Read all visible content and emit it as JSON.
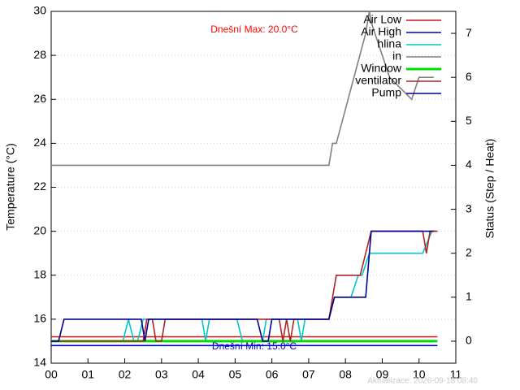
{
  "chart_data": {
    "type": "line",
    "ylabel": "Temperature (°C)",
    "y2label": "Status (Step / Heat)",
    "xlim": [
      0,
      11
    ],
    "xticks": [
      {
        "value": 0,
        "label": "00"
      },
      {
        "value": 1,
        "label": "01"
      },
      {
        "value": 2,
        "label": "02"
      },
      {
        "value": 3,
        "label": "03"
      },
      {
        "value": 4,
        "label": "04"
      },
      {
        "value": 5,
        "label": "05"
      },
      {
        "value": 6,
        "label": "06"
      },
      {
        "value": 7,
        "label": "07"
      },
      {
        "value": 8,
        "label": "08"
      },
      {
        "value": 9,
        "label": "09"
      },
      {
        "value": 10,
        "label": "10"
      },
      {
        "value": 11,
        "label": "11"
      }
    ],
    "ylim": [
      14,
      30
    ],
    "yticks": [
      14,
      16,
      18,
      20,
      22,
      24,
      26,
      28,
      30
    ],
    "y2lim": [
      -0.5,
      7.5
    ],
    "y2ticks": [
      0,
      1,
      2,
      3,
      4,
      5,
      6,
      7
    ],
    "grid": true,
    "legend": "top-right",
    "annotations": [
      {
        "text": "Dnešní Max: 20.0°C",
        "color": "#ff0000"
      },
      {
        "text": "Dnešní Min: 15.0°C",
        "color": "#0000cc"
      },
      {
        "text": "Aktualizace: 2026-09-18 08:40",
        "color": "#c8c8c8"
      }
    ],
    "series": [
      {
        "name": "Air Low",
        "color": "#cc1111",
        "x": [
          0,
          10.5
        ],
        "values": [
          15.2,
          15.2
        ]
      },
      {
        "name": "Air High",
        "color": "#0000cc",
        "x": [
          0,
          10.5
        ],
        "values": [
          14.8,
          14.8
        ]
      },
      {
        "name": "hlina",
        "color": "#00c8c8",
        "x": [
          1.95,
          2.1,
          2.25,
          2.35,
          2.5,
          4.1,
          4.2,
          4.3,
          5.05,
          5.2,
          5.6,
          5.75,
          5.85,
          6.7,
          6.8,
          6.9,
          7.55,
          7.7,
          8.15,
          8.35,
          8.45,
          8.65,
          10.1,
          10.35,
          10.5
        ],
        "values": [
          15,
          16,
          15,
          15,
          16,
          16,
          15,
          16,
          16,
          15,
          15,
          15,
          16,
          16,
          15,
          16,
          16,
          17,
          17,
          18,
          18,
          19,
          19,
          20,
          20
        ]
      },
      {
        "name": "in",
        "color": "#808080",
        "x": [
          0,
          7.55,
          7.65,
          7.75,
          8.55,
          8.65,
          8.7,
          9.0,
          9.2,
          9.8,
          10.0,
          10.4
        ],
        "values": [
          23,
          23,
          24,
          24,
          29,
          30,
          29.5,
          28,
          27,
          26,
          27,
          27
        ]
      },
      {
        "name": "Window",
        "color": "#00dd00",
        "x": [
          0,
          10.5
        ],
        "values": [
          15,
          15
        ]
      },
      {
        "name": "ventilator",
        "color": "#b22222",
        "x": [
          0,
          2.5,
          2.6,
          2.75,
          2.85,
          3.0,
          3.1,
          6.2,
          6.3,
          6.4,
          6.5,
          6.6,
          7.55,
          7.75,
          8.4,
          8.7,
          10.1,
          10.2,
          10.3,
          10.5
        ],
        "values": [
          15,
          15,
          16,
          16,
          15,
          15,
          16,
          16,
          15,
          16,
          15,
          16,
          16,
          18,
          18,
          20,
          20,
          19,
          20,
          20
        ]
      },
      {
        "name": "Pump",
        "color": "#00008b",
        "x": [
          0,
          0.2,
          0.35,
          2.45,
          2.55,
          2.65,
          5.6,
          5.75,
          5.9,
          6.0,
          7.55,
          7.7,
          8.55,
          8.7,
          10.4
        ],
        "values": [
          15,
          15,
          16,
          16,
          15,
          16,
          16,
          15,
          15,
          16,
          16,
          17,
          17,
          20,
          20
        ]
      }
    ]
  }
}
